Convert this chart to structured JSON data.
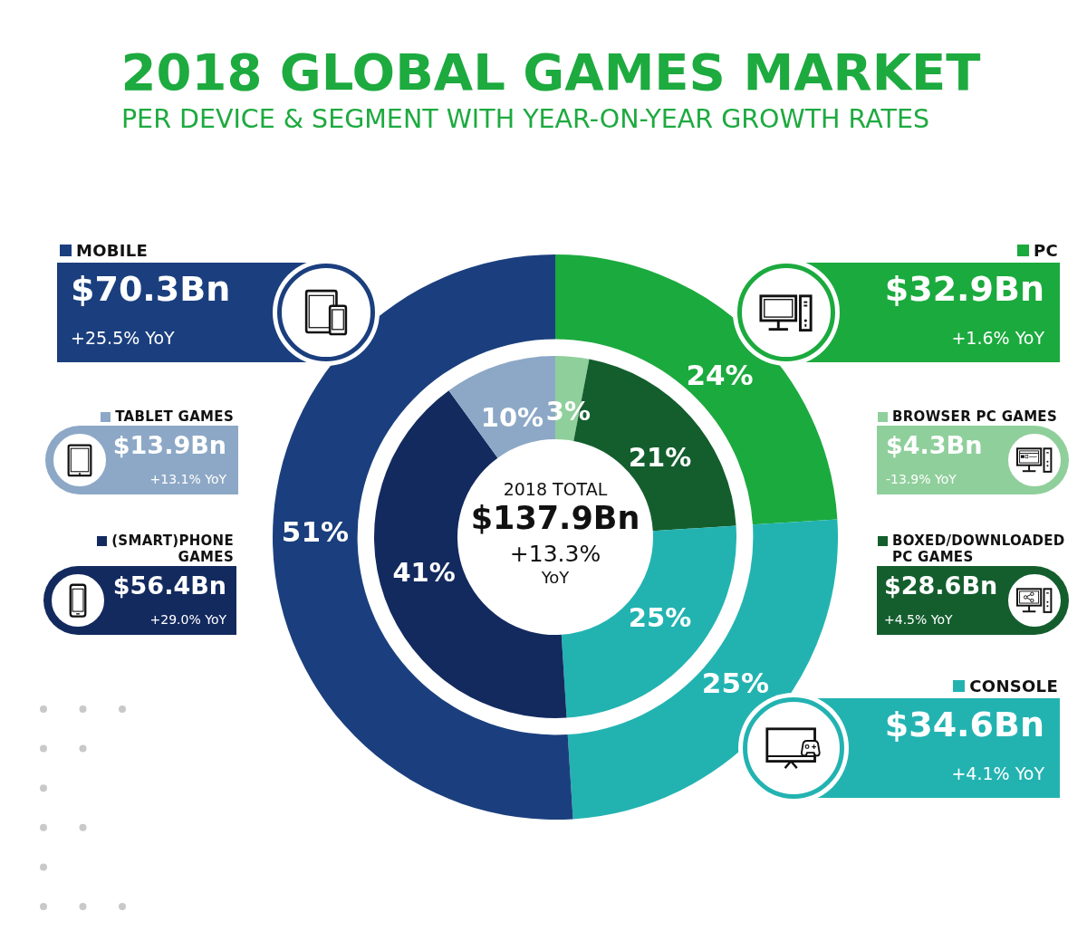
{
  "chart_data": [
    {
      "type": "donut",
      "title": "2018 GLOBAL GAMES MARKET",
      "subtitle": "PER DEVICE & SEGMENT WITH YEAR-ON-YEAR GROWTH RATES",
      "categories": [
        "PC",
        "CONSOLE",
        "MOBILE"
      ],
      "values": [
        24,
        25,
        51
      ],
      "colors": [
        "#1baa3e",
        "#22b3b1",
        "#1b3f7e"
      ],
      "value_labels": [
        "24%",
        "25%",
        "51%"
      ],
      "legend": "right",
      "annotations": [
        "$32.9Bn",
        "+1.6% YoY",
        "$34.6Bn",
        "+4.1% YoY",
        "$70.3Bn",
        "+25.5% YoY"
      ]
    },
    {
      "type": "donut",
      "categories": [
        "BROWSER PC GAMES",
        "BOXED/DOWNLOADED PC GAMES",
        null,
        "(SMART)PHONE GAMES",
        "TABLET GAMES"
      ],
      "values": [
        3,
        21,
        25,
        41,
        10
      ],
      "colors": [
        "#8fcf9b",
        "#145e2e",
        "#22b3b1",
        "#132a5f",
        "#8da8c6"
      ],
      "value_labels": [
        "3%",
        "21%",
        "25%",
        "41%",
        "10%"
      ],
      "legend": "top right",
      "annotations": [
        "$4.3Bn",
        "-13.9% YoY",
        "$28.6Bn",
        "+4.5% YoY",
        "$56.4Bn",
        "+29.0% YoY",
        "$13.9Bn",
        "+13.1% YoY"
      ]
    },
    {
      "type": "other",
      "annotations": [
        "2018 TOTAL",
        "$137.9Bn",
        "+13.3%",
        "YoY"
      ]
    }
  ]
}
